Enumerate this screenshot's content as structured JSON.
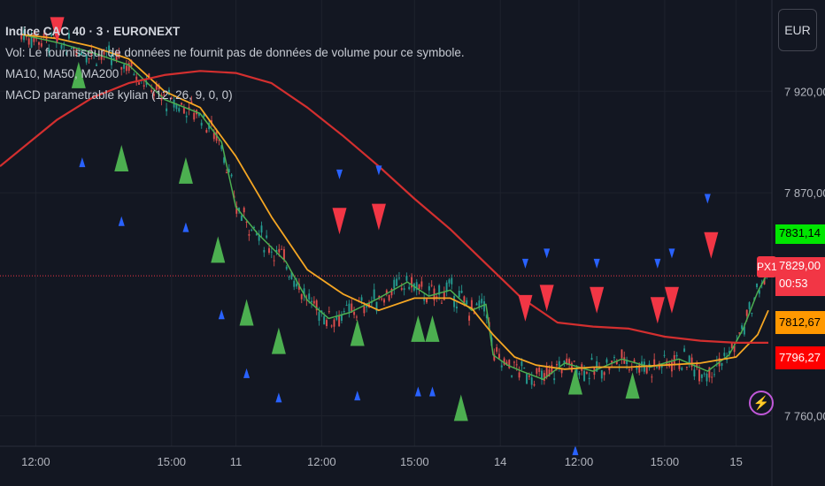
{
  "header": {
    "symbol": "Indice CAC 40 · 3 · EURONEXT",
    "vol_notice": "Vol: Le fournisseur de données ne fournit pas de données de volume pour ce symbole.",
    "ma_label": "MA10, MA50, MA200",
    "macd_label": "MACD parametrable kylian  (12, 26, 9, 0, 0)",
    "currency": "EUR"
  },
  "price_tags": {
    "ma10": "7831,14",
    "last": "7829,00",
    "countdown": "00:53",
    "ma50": "7812,67",
    "ma200": "7796,27",
    "marker": "PX1"
  },
  "colors": {
    "background": "#131722",
    "ma10": "#4caf50",
    "ma50": "#f5a623",
    "ma200": "#d32f2f",
    "candle_up": "#26a69a",
    "candle_down": "#ef5350",
    "signal_buy": "#4caf50",
    "signal_sell": "#f23645",
    "signal_small": "#2962ff"
  },
  "chart_data": {
    "type": "line",
    "ylim": [
      7745,
      7965
    ],
    "y_ticks": [
      7760,
      7870,
      7920
    ],
    "y_tick_labels": [
      "7 760,00",
      "7 870,00",
      "7 920,00"
    ],
    "x_ticks": [
      0.2,
      2.1,
      3.0,
      4.2,
      5.5,
      6.7,
      7.8,
      9.0,
      10.0
    ],
    "x_tick_labels": [
      "12:00",
      "15:00",
      "11",
      "12:00",
      "15:00",
      "14",
      "12:00",
      "15:00",
      "15"
    ],
    "xlim": [
      -0.3,
      10.5
    ],
    "series": [
      {
        "name": "MA10",
        "x": [
          0,
          0.5,
          1.0,
          1.5,
          2.0,
          2.5,
          2.8,
          3.0,
          3.3,
          3.7,
          4.0,
          4.3,
          4.6,
          5.0,
          5.4,
          5.7,
          6.0,
          6.3,
          6.5,
          6.6,
          6.8,
          7.0,
          7.3,
          7.6,
          8.0,
          8.4,
          8.8,
          9.2,
          9.6,
          9.9,
          10.1,
          10.3,
          10.45
        ],
        "y": [
          7948,
          7944,
          7939,
          7933,
          7916,
          7909,
          7895,
          7863,
          7850,
          7836,
          7817,
          7808,
          7811,
          7818,
          7826,
          7819,
          7822,
          7812,
          7815,
          7790,
          7785,
          7782,
          7778,
          7786,
          7782,
          7788,
          7784,
          7788,
          7782,
          7790,
          7803,
          7821,
          7831
        ]
      },
      {
        "name": "MA50",
        "x": [
          0,
          0.5,
          1.0,
          1.5,
          2.0,
          2.5,
          3.0,
          3.5,
          4.0,
          4.5,
          5.0,
          5.5,
          6.0,
          6.3,
          6.6,
          6.9,
          7.2,
          7.6,
          8.0,
          8.5,
          9.0,
          9.5,
          10.0,
          10.3,
          10.45
        ],
        "y": [
          7948,
          7946,
          7942,
          7936,
          7920,
          7912,
          7888,
          7858,
          7832,
          7820,
          7812,
          7818,
          7818,
          7813,
          7800,
          7789,
          7785,
          7783,
          7784,
          7784,
          7785,
          7786,
          7789,
          7800,
          7812
        ]
      },
      {
        "name": "MA200",
        "x": [
          -0.3,
          0.5,
          1.0,
          1.5,
          2.0,
          2.5,
          3.0,
          3.5,
          4.0,
          4.5,
          5.0,
          5.5,
          6.0,
          6.5,
          7.0,
          7.5,
          8.0,
          8.5,
          9.0,
          9.5,
          10.0,
          10.45
        ],
        "y": [
          7883,
          7906,
          7917,
          7924,
          7928,
          7930,
          7929,
          7924,
          7912,
          7898,
          7883,
          7867,
          7852,
          7835,
          7818,
          7806,
          7804,
          7803,
          7799,
          7797,
          7796,
          7796
        ]
      }
    ],
    "current_price": 7829,
    "markers": [
      {
        "x": 0.5,
        "y": 7950,
        "dir": "down",
        "kind": "sell"
      },
      {
        "x": 0.8,
        "y": 7928,
        "dir": "up",
        "kind": "buy"
      },
      {
        "x": 0.85,
        "y": 7885,
        "dir": "up",
        "kind": "small"
      },
      {
        "x": 1.4,
        "y": 7887,
        "dir": "up",
        "kind": "buy"
      },
      {
        "x": 1.4,
        "y": 7856,
        "dir": "up",
        "kind": "small"
      },
      {
        "x": 2.3,
        "y": 7881,
        "dir": "up",
        "kind": "buy"
      },
      {
        "x": 2.3,
        "y": 7853,
        "dir": "up",
        "kind": "small"
      },
      {
        "x": 2.75,
        "y": 7842,
        "dir": "up",
        "kind": "buy"
      },
      {
        "x": 2.8,
        "y": 7810,
        "dir": "up",
        "kind": "small"
      },
      {
        "x": 3.15,
        "y": 7811,
        "dir": "up",
        "kind": "buy"
      },
      {
        "x": 3.15,
        "y": 7781,
        "dir": "up",
        "kind": "small"
      },
      {
        "x": 3.6,
        "y": 7797,
        "dir": "up",
        "kind": "buy"
      },
      {
        "x": 3.6,
        "y": 7769,
        "dir": "up",
        "kind": "small"
      },
      {
        "x": 4.45,
        "y": 7879,
        "dir": "down",
        "kind": "small"
      },
      {
        "x": 4.45,
        "y": 7856,
        "dir": "down",
        "kind": "sell"
      },
      {
        "x": 4.7,
        "y": 7801,
        "dir": "up",
        "kind": "buy"
      },
      {
        "x": 4.7,
        "y": 7770,
        "dir": "up",
        "kind": "small"
      },
      {
        "x": 5.0,
        "y": 7881,
        "dir": "down",
        "kind": "small"
      },
      {
        "x": 5.0,
        "y": 7858,
        "dir": "down",
        "kind": "sell"
      },
      {
        "x": 5.55,
        "y": 7803,
        "dir": "up",
        "kind": "buy"
      },
      {
        "x": 5.75,
        "y": 7803,
        "dir": "up",
        "kind": "buy"
      },
      {
        "x": 5.55,
        "y": 7772,
        "dir": "up",
        "kind": "small"
      },
      {
        "x": 5.75,
        "y": 7772,
        "dir": "up",
        "kind": "small"
      },
      {
        "x": 6.15,
        "y": 7764,
        "dir": "up",
        "kind": "buy"
      },
      {
        "x": 7.05,
        "y": 7835,
        "dir": "down",
        "kind": "small"
      },
      {
        "x": 7.05,
        "y": 7813,
        "dir": "down",
        "kind": "sell"
      },
      {
        "x": 7.35,
        "y": 7818,
        "dir": "down",
        "kind": "sell"
      },
      {
        "x": 7.35,
        "y": 7840,
        "dir": "down",
        "kind": "small"
      },
      {
        "x": 7.75,
        "y": 7777,
        "dir": "up",
        "kind": "buy"
      },
      {
        "x": 7.75,
        "y": 7743,
        "dir": "up",
        "kind": "small"
      },
      {
        "x": 8.05,
        "y": 7835,
        "dir": "down",
        "kind": "small"
      },
      {
        "x": 8.05,
        "y": 7817,
        "dir": "down",
        "kind": "sell"
      },
      {
        "x": 8.55,
        "y": 7775,
        "dir": "up",
        "kind": "buy"
      },
      {
        "x": 8.9,
        "y": 7835,
        "dir": "down",
        "kind": "small"
      },
      {
        "x": 8.9,
        "y": 7812,
        "dir": "down",
        "kind": "sell"
      },
      {
        "x": 9.1,
        "y": 7817,
        "dir": "down",
        "kind": "sell"
      },
      {
        "x": 9.1,
        "y": 7840,
        "dir": "down",
        "kind": "small"
      },
      {
        "x": 9.6,
        "y": 7867,
        "dir": "down",
        "kind": "small"
      },
      {
        "x": 9.65,
        "y": 7844,
        "dir": "down",
        "kind": "sell"
      }
    ]
  }
}
